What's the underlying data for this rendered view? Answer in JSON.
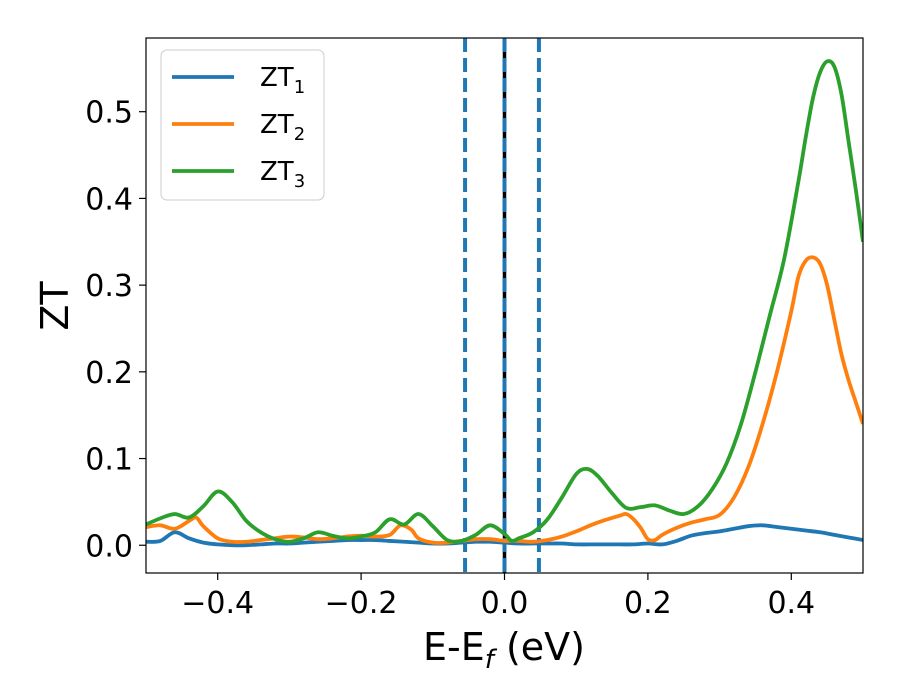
{
  "chart_data": {
    "type": "line",
    "xlabel_main": "E-E",
    "xlabel_sub": "f",
    "xlabel_unit": " (eV)",
    "ylabel": "ZT",
    "xlim": [
      -0.5,
      0.5
    ],
    "ylim": [
      -0.032,
      0.585
    ],
    "x_ticks": [
      -0.4,
      -0.2,
      0.0,
      0.2,
      0.4
    ],
    "x_tick_labels": [
      "−0.4",
      "−0.2",
      "0.0",
      "0.2",
      "0.4"
    ],
    "y_ticks": [
      0.0,
      0.1,
      0.2,
      0.3,
      0.4,
      0.5
    ],
    "y_tick_labels": [
      "0.0",
      "0.1",
      "0.2",
      "0.3",
      "0.4",
      "0.5"
    ],
    "grid": false,
    "legend_position": "top-left",
    "vlines": [
      {
        "x": -0.055,
        "style": "dashed",
        "color": "#1f77b4"
      },
      {
        "x": 0.0,
        "style": "solid",
        "color": "#000000"
      },
      {
        "x": 0.0,
        "style": "dashed",
        "color": "#1f77b4"
      },
      {
        "x": 0.048,
        "style": "dashed",
        "color": "#1f77b4"
      }
    ],
    "series": [
      {
        "name_main": "ZT",
        "name_sub": "1",
        "color": "#1f77b4",
        "points": [
          [
            -0.5,
            0.004
          ],
          [
            -0.48,
            0.005
          ],
          [
            -0.46,
            0.015
          ],
          [
            -0.44,
            0.008
          ],
          [
            -0.42,
            0.003
          ],
          [
            -0.4,
            0.001
          ],
          [
            -0.38,
            0.0
          ],
          [
            -0.36,
            0.0
          ],
          [
            -0.34,
            0.001
          ],
          [
            -0.32,
            0.002
          ],
          [
            -0.3,
            0.002
          ],
          [
            -0.28,
            0.003
          ],
          [
            -0.26,
            0.004
          ],
          [
            -0.24,
            0.005
          ],
          [
            -0.22,
            0.006
          ],
          [
            -0.2,
            0.006
          ],
          [
            -0.18,
            0.006
          ],
          [
            -0.16,
            0.005
          ],
          [
            -0.14,
            0.004
          ],
          [
            -0.12,
            0.003
          ],
          [
            -0.1,
            0.002
          ],
          [
            -0.08,
            0.002
          ],
          [
            -0.06,
            0.003
          ],
          [
            -0.04,
            0.004
          ],
          [
            -0.02,
            0.004
          ],
          [
            0.0,
            0.003
          ],
          [
            0.02,
            0.002
          ],
          [
            0.04,
            0.002
          ],
          [
            0.06,
            0.002
          ],
          [
            0.08,
            0.002
          ],
          [
            0.1,
            0.001
          ],
          [
            0.12,
            0.001
          ],
          [
            0.14,
            0.001
          ],
          [
            0.16,
            0.001
          ],
          [
            0.18,
            0.001
          ],
          [
            0.2,
            0.002
          ],
          [
            0.22,
            0.001
          ],
          [
            0.24,
            0.005
          ],
          [
            0.26,
            0.011
          ],
          [
            0.28,
            0.014
          ],
          [
            0.3,
            0.016
          ],
          [
            0.32,
            0.019
          ],
          [
            0.34,
            0.022
          ],
          [
            0.36,
            0.023
          ],
          [
            0.38,
            0.021
          ],
          [
            0.4,
            0.019
          ],
          [
            0.42,
            0.017
          ],
          [
            0.44,
            0.015
          ],
          [
            0.46,
            0.012
          ],
          [
            0.48,
            0.009
          ],
          [
            0.5,
            0.006
          ]
        ]
      },
      {
        "name_main": "ZT",
        "name_sub": "2",
        "color": "#ff7f0e",
        "points": [
          [
            -0.5,
            0.021
          ],
          [
            -0.48,
            0.023
          ],
          [
            -0.46,
            0.019
          ],
          [
            -0.44,
            0.028
          ],
          [
            -0.43,
            0.032
          ],
          [
            -0.42,
            0.022
          ],
          [
            -0.4,
            0.008
          ],
          [
            -0.38,
            0.004
          ],
          [
            -0.36,
            0.004
          ],
          [
            -0.34,
            0.006
          ],
          [
            -0.32,
            0.008
          ],
          [
            -0.3,
            0.01
          ],
          [
            -0.28,
            0.009
          ],
          [
            -0.26,
            0.007
          ],
          [
            -0.24,
            0.008
          ],
          [
            -0.22,
            0.01
          ],
          [
            -0.2,
            0.011
          ],
          [
            -0.18,
            0.01
          ],
          [
            -0.16,
            0.012
          ],
          [
            -0.145,
            0.023
          ],
          [
            -0.13,
            0.018
          ],
          [
            -0.12,
            0.008
          ],
          [
            -0.1,
            0.003
          ],
          [
            -0.08,
            0.003
          ],
          [
            -0.06,
            0.005
          ],
          [
            -0.04,
            0.007
          ],
          [
            -0.02,
            0.007
          ],
          [
            0.0,
            0.005
          ],
          [
            0.02,
            0.005
          ],
          [
            0.04,
            0.004
          ],
          [
            0.06,
            0.006
          ],
          [
            0.08,
            0.01
          ],
          [
            0.1,
            0.016
          ],
          [
            0.12,
            0.023
          ],
          [
            0.14,
            0.029
          ],
          [
            0.16,
            0.034
          ],
          [
            0.17,
            0.036
          ],
          [
            0.18,
            0.03
          ],
          [
            0.19,
            0.02
          ],
          [
            0.2,
            0.007
          ],
          [
            0.21,
            0.006
          ],
          [
            0.22,
            0.012
          ],
          [
            0.24,
            0.02
          ],
          [
            0.26,
            0.026
          ],
          [
            0.28,
            0.03
          ],
          [
            0.3,
            0.035
          ],
          [
            0.32,
            0.055
          ],
          [
            0.34,
            0.09
          ],
          [
            0.36,
            0.14
          ],
          [
            0.38,
            0.2
          ],
          [
            0.4,
            0.27
          ],
          [
            0.41,
            0.31
          ],
          [
            0.42,
            0.328
          ],
          [
            0.43,
            0.332
          ],
          [
            0.44,
            0.325
          ],
          [
            0.45,
            0.3
          ],
          [
            0.46,
            0.26
          ],
          [
            0.47,
            0.22
          ],
          [
            0.48,
            0.19
          ],
          [
            0.49,
            0.165
          ],
          [
            0.5,
            0.14
          ]
        ]
      },
      {
        "name_main": "ZT",
        "name_sub": "3",
        "color": "#2ca02c",
        "points": [
          [
            -0.5,
            0.024
          ],
          [
            -0.48,
            0.031
          ],
          [
            -0.46,
            0.036
          ],
          [
            -0.44,
            0.032
          ],
          [
            -0.42,
            0.045
          ],
          [
            -0.4,
            0.062
          ],
          [
            -0.38,
            0.05
          ],
          [
            -0.36,
            0.028
          ],
          [
            -0.34,
            0.015
          ],
          [
            -0.32,
            0.007
          ],
          [
            -0.3,
            0.004
          ],
          [
            -0.28,
            0.008
          ],
          [
            -0.26,
            0.015
          ],
          [
            -0.24,
            0.011
          ],
          [
            -0.22,
            0.008
          ],
          [
            -0.2,
            0.01
          ],
          [
            -0.18,
            0.015
          ],
          [
            -0.16,
            0.03
          ],
          [
            -0.14,
            0.024
          ],
          [
            -0.12,
            0.036
          ],
          [
            -0.1,
            0.022
          ],
          [
            -0.08,
            0.006
          ],
          [
            -0.06,
            0.005
          ],
          [
            -0.04,
            0.012
          ],
          [
            -0.02,
            0.023
          ],
          [
            0.0,
            0.013
          ],
          [
            0.01,
            0.005
          ],
          [
            0.02,
            0.008
          ],
          [
            0.04,
            0.015
          ],
          [
            0.06,
            0.03
          ],
          [
            0.08,
            0.055
          ],
          [
            0.1,
            0.082
          ],
          [
            0.115,
            0.088
          ],
          [
            0.13,
            0.08
          ],
          [
            0.15,
            0.06
          ],
          [
            0.17,
            0.043
          ],
          [
            0.19,
            0.044
          ],
          [
            0.21,
            0.046
          ],
          [
            0.23,
            0.04
          ],
          [
            0.25,
            0.036
          ],
          [
            0.27,
            0.045
          ],
          [
            0.29,
            0.065
          ],
          [
            0.31,
            0.095
          ],
          [
            0.33,
            0.14
          ],
          [
            0.35,
            0.2
          ],
          [
            0.37,
            0.265
          ],
          [
            0.39,
            0.33
          ],
          [
            0.41,
            0.42
          ],
          [
            0.42,
            0.47
          ],
          [
            0.43,
            0.515
          ],
          [
            0.44,
            0.545
          ],
          [
            0.45,
            0.558
          ],
          [
            0.46,
            0.552
          ],
          [
            0.47,
            0.52
          ],
          [
            0.48,
            0.465
          ],
          [
            0.49,
            0.41
          ],
          [
            0.5,
            0.35
          ]
        ]
      }
    ]
  }
}
